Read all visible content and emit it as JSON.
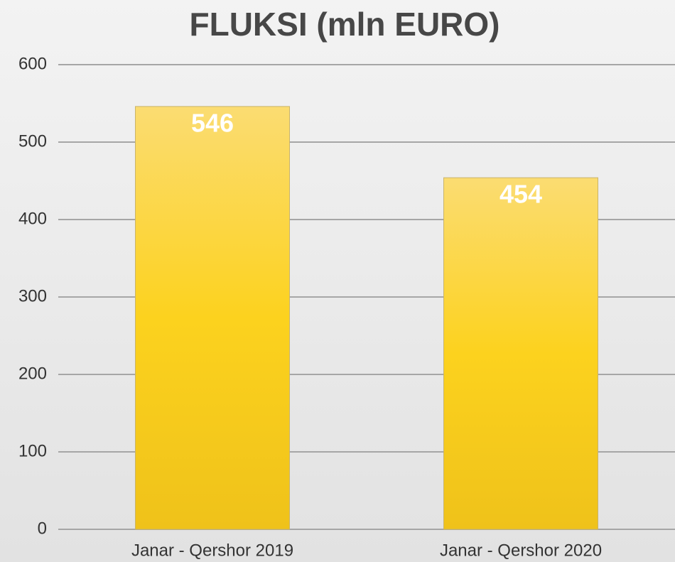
{
  "chart_data": {
    "type": "bar",
    "title": "FLUKSI (mln EURO)",
    "categories": [
      "Janar - Qershor 2019",
      "Janar - Qershor 2020"
    ],
    "values": [
      546,
      454
    ],
    "color": "#f7cc1e",
    "ylim": [
      0,
      600
    ],
    "yticks": [
      0,
      100,
      200,
      300,
      400,
      500,
      600
    ],
    "grid": true
  }
}
